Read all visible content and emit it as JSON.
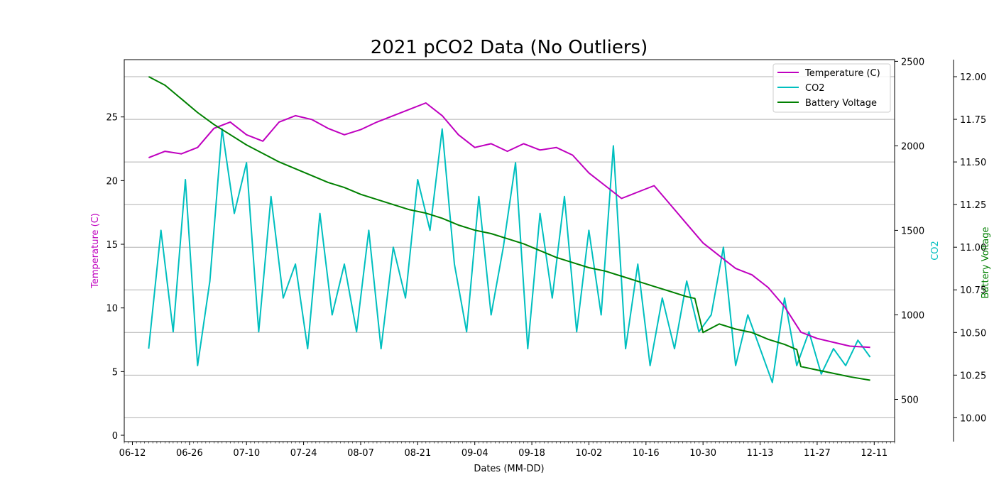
{
  "colors": {
    "temperature": "#bf00bf",
    "co2": "#00bfbf",
    "battery": "#008000",
    "grid": "#b0b0b0"
  },
  "chart_data": {
    "type": "line",
    "title": "2021 pCO2 Data (No Outliers)",
    "xlabel": "Dates (MM-DD)",
    "x_ticks": [
      "06-12",
      "06-26",
      "07-10",
      "07-24",
      "08-07",
      "08-21",
      "09-04",
      "09-18",
      "10-02",
      "10-16",
      "10-30",
      "11-13",
      "11-27",
      "12-11"
    ],
    "x_range": [
      "2021-06-10",
      "2021-12-16"
    ],
    "grid": true,
    "legend": "top-right",
    "axes": {
      "left": {
        "label": "Temperature (C)",
        "range": [
          -0.5,
          29.5
        ],
        "ticks": [
          "0",
          "5",
          "10",
          "15",
          "20",
          "25"
        ]
      },
      "right": {
        "label": "CO2",
        "range": [
          250,
          2510
        ],
        "ticks": [
          "500",
          "1000",
          "1500",
          "2000",
          "2500"
        ]
      },
      "right2": {
        "label": "Battery Voltage",
        "range": [
          9.86,
          12.1
        ],
        "ticks": [
          "10.00",
          "10.25",
          "10.50",
          "10.75",
          "11.00",
          "11.25",
          "11.50",
          "11.75",
          "12.00"
        ]
      }
    },
    "series": [
      {
        "name": "Temperature (C)",
        "axis": "left",
        "x": [
          "2021-06-16",
          "2021-06-20",
          "2021-06-24",
          "2021-06-28",
          "2021-07-02",
          "2021-07-06",
          "2021-07-10",
          "2021-07-14",
          "2021-07-18",
          "2021-07-22",
          "2021-07-26",
          "2021-07-30",
          "2021-08-03",
          "2021-08-07",
          "2021-08-11",
          "2021-08-15",
          "2021-08-19",
          "2021-08-23",
          "2021-08-27",
          "2021-08-31",
          "2021-09-04",
          "2021-09-08",
          "2021-09-12",
          "2021-09-16",
          "2021-09-20",
          "2021-09-24",
          "2021-09-28",
          "2021-10-02",
          "2021-10-06",
          "2021-10-10",
          "2021-10-14",
          "2021-10-18",
          "2021-10-22",
          "2021-10-26",
          "2021-10-30",
          "2021-11-03",
          "2021-11-07",
          "2021-11-11",
          "2021-11-15",
          "2021-11-19",
          "2021-11-23",
          "2021-11-27",
          "2021-12-01",
          "2021-12-05",
          "2021-12-10"
        ],
        "values": [
          21.8,
          22.3,
          22.1,
          22.6,
          24.1,
          24.6,
          23.6,
          23.1,
          24.6,
          25.1,
          24.8,
          24.1,
          23.6,
          24.0,
          24.6,
          25.1,
          25.6,
          26.1,
          25.1,
          23.6,
          22.6,
          22.9,
          22.3,
          22.9,
          22.4,
          22.6,
          22.0,
          20.6,
          19.6,
          18.6,
          19.1,
          19.6,
          18.1,
          16.6,
          15.1,
          14.1,
          13.1,
          12.6,
          11.6,
          10.1,
          8.1,
          7.6,
          7.3,
          7.0,
          6.9
        ]
      },
      {
        "name": "CO2",
        "axis": "right",
        "x": [
          "2021-06-16",
          "2021-06-19",
          "2021-06-22",
          "2021-06-25",
          "2021-06-28",
          "2021-07-01",
          "2021-07-04",
          "2021-07-07",
          "2021-07-10",
          "2021-07-13",
          "2021-07-16",
          "2021-07-19",
          "2021-07-22",
          "2021-07-25",
          "2021-07-28",
          "2021-07-31",
          "2021-08-03",
          "2021-08-06",
          "2021-08-09",
          "2021-08-12",
          "2021-08-15",
          "2021-08-18",
          "2021-08-21",
          "2021-08-24",
          "2021-08-27",
          "2021-08-30",
          "2021-09-02",
          "2021-09-05",
          "2021-09-08",
          "2021-09-11",
          "2021-09-14",
          "2021-09-17",
          "2021-09-20",
          "2021-09-23",
          "2021-09-26",
          "2021-09-29",
          "2021-10-02",
          "2021-10-05",
          "2021-10-08",
          "2021-10-11",
          "2021-10-14",
          "2021-10-17",
          "2021-10-20",
          "2021-10-23",
          "2021-10-26",
          "2021-10-29",
          "2021-11-01",
          "2021-11-04",
          "2021-11-07",
          "2021-11-10",
          "2021-11-13",
          "2021-11-16",
          "2021-11-19",
          "2021-11-22",
          "2021-11-25",
          "2021-11-28",
          "2021-12-01",
          "2021-12-04",
          "2021-12-07",
          "2021-12-10"
        ],
        "values": [
          800,
          1500,
          900,
          1800,
          700,
          1200,
          2100,
          1600,
          1900,
          900,
          1700,
          1100,
          1300,
          800,
          1600,
          1000,
          1300,
          900,
          1500,
          800,
          1400,
          1100,
          1800,
          1500,
          2100,
          1300,
          900,
          1700,
          1000,
          1400,
          1900,
          800,
          1600,
          1100,
          1700,
          900,
          1500,
          1000,
          2000,
          800,
          1300,
          700,
          1100,
          800,
          1200,
          900,
          1000,
          1400,
          700,
          1000,
          800,
          600,
          1100,
          700,
          900,
          650,
          800,
          700,
          850,
          750
        ]
      },
      {
        "name": "Battery Voltage",
        "axis": "right2",
        "x": [
          "2021-06-16",
          "2021-06-20",
          "2021-06-24",
          "2021-06-28",
          "2021-07-02",
          "2021-07-06",
          "2021-07-10",
          "2021-07-14",
          "2021-07-18",
          "2021-07-22",
          "2021-07-26",
          "2021-07-30",
          "2021-08-03",
          "2021-08-07",
          "2021-08-11",
          "2021-08-15",
          "2021-08-19",
          "2021-08-23",
          "2021-08-27",
          "2021-08-31",
          "2021-09-04",
          "2021-09-08",
          "2021-09-12",
          "2021-09-16",
          "2021-09-20",
          "2021-09-24",
          "2021-09-28",
          "2021-10-02",
          "2021-10-06",
          "2021-10-10",
          "2021-10-14",
          "2021-10-18",
          "2021-10-22",
          "2021-10-26",
          "2021-10-28",
          "2021-10-30",
          "2021-11-03",
          "2021-11-07",
          "2021-11-11",
          "2021-11-15",
          "2021-11-19",
          "2021-11-22",
          "2021-11-23",
          "2021-11-27",
          "2021-12-01",
          "2021-12-05",
          "2021-12-10"
        ],
        "values": [
          12.0,
          11.95,
          11.87,
          11.79,
          11.72,
          11.66,
          11.6,
          11.55,
          11.5,
          11.46,
          11.42,
          11.38,
          11.35,
          11.31,
          11.28,
          11.25,
          11.22,
          11.2,
          11.17,
          11.13,
          11.1,
          11.08,
          11.05,
          11.02,
          10.98,
          10.94,
          10.91,
          10.88,
          10.86,
          10.83,
          10.8,
          10.77,
          10.74,
          10.71,
          10.7,
          10.5,
          10.55,
          10.52,
          10.5,
          10.46,
          10.43,
          10.4,
          10.3,
          10.28,
          10.26,
          10.24,
          10.22
        ]
      }
    ]
  }
}
